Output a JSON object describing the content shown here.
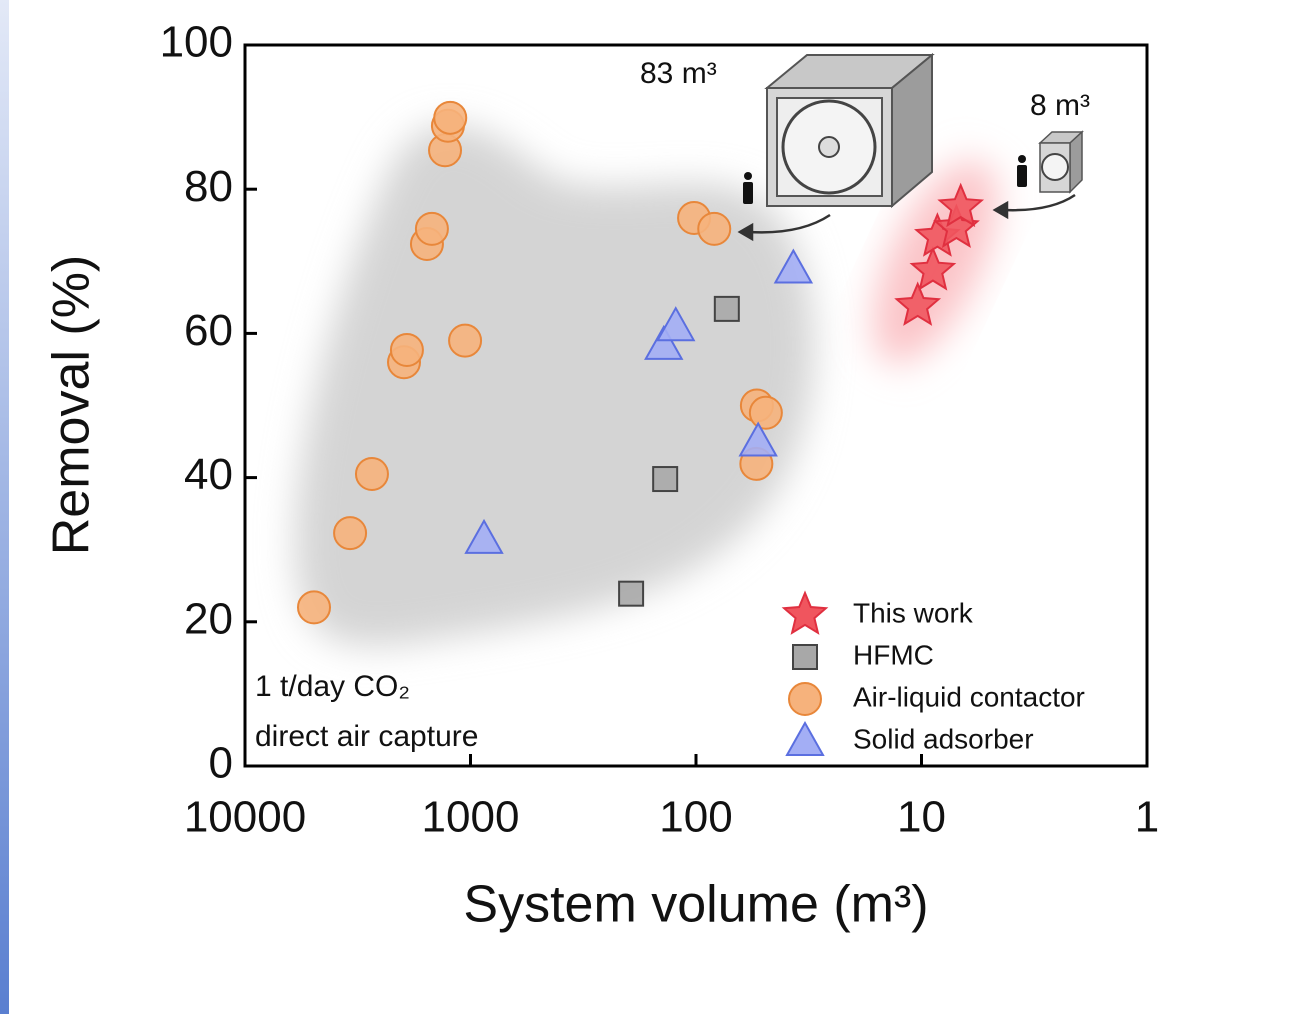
{
  "chart_data": {
    "type": "scatter",
    "xlabel": "System volume (m³)",
    "ylabel": "Removal (%)",
    "xlim": [
      10000,
      1
    ],
    "xscale": "log",
    "xticks": [
      10000,
      1000,
      100,
      10,
      1
    ],
    "ylim": [
      0,
      100
    ],
    "yticks": [
      0,
      20,
      40,
      60,
      80,
      100
    ],
    "legend": "lower right",
    "annotations": [
      "83 m³",
      "8 m³",
      "1 t/day CO₂",
      "direct air capture"
    ],
    "series": [
      {
        "name": "This work",
        "marker": "star",
        "color": "#f0555e",
        "edge": "#e03040",
        "x": [
          10.4,
          8.9,
          8.5,
          7.0,
          6.7
        ],
        "values": [
          63.8,
          68.7,
          73.4,
          74.6,
          77.5
        ]
      },
      {
        "name": "HFMC",
        "marker": "square",
        "color": "#a8a8a8",
        "edge": "#444444",
        "x": [
          194,
          137,
          73
        ],
        "values": [
          23.9,
          39.8,
          63.4
        ]
      },
      {
        "name": "Air-liquid contactor",
        "marker": "circle",
        "color": "#f6b27c",
        "edge": "#e8873a",
        "x": [
          4943,
          3420,
          2735,
          1972,
          1914,
          1560,
          1483,
          1297,
          1259,
          1230,
          1057,
          102,
          83,
          53.7,
          49,
          54
        ],
        "values": [
          22,
          32.3,
          40.5,
          56,
          57.7,
          72.4,
          74.5,
          85.4,
          88.8,
          89.9,
          59,
          76,
          74.5,
          50,
          49,
          41.9
        ]
      },
      {
        "name": "Solid adsorber",
        "marker": "triangle",
        "color": "#a3aef5",
        "edge": "#5b6fe0",
        "x": [
          871,
          139,
          123,
          53,
          37
        ],
        "values": [
          31.5,
          58.4,
          61,
          45,
          69
        ]
      }
    ]
  }
}
